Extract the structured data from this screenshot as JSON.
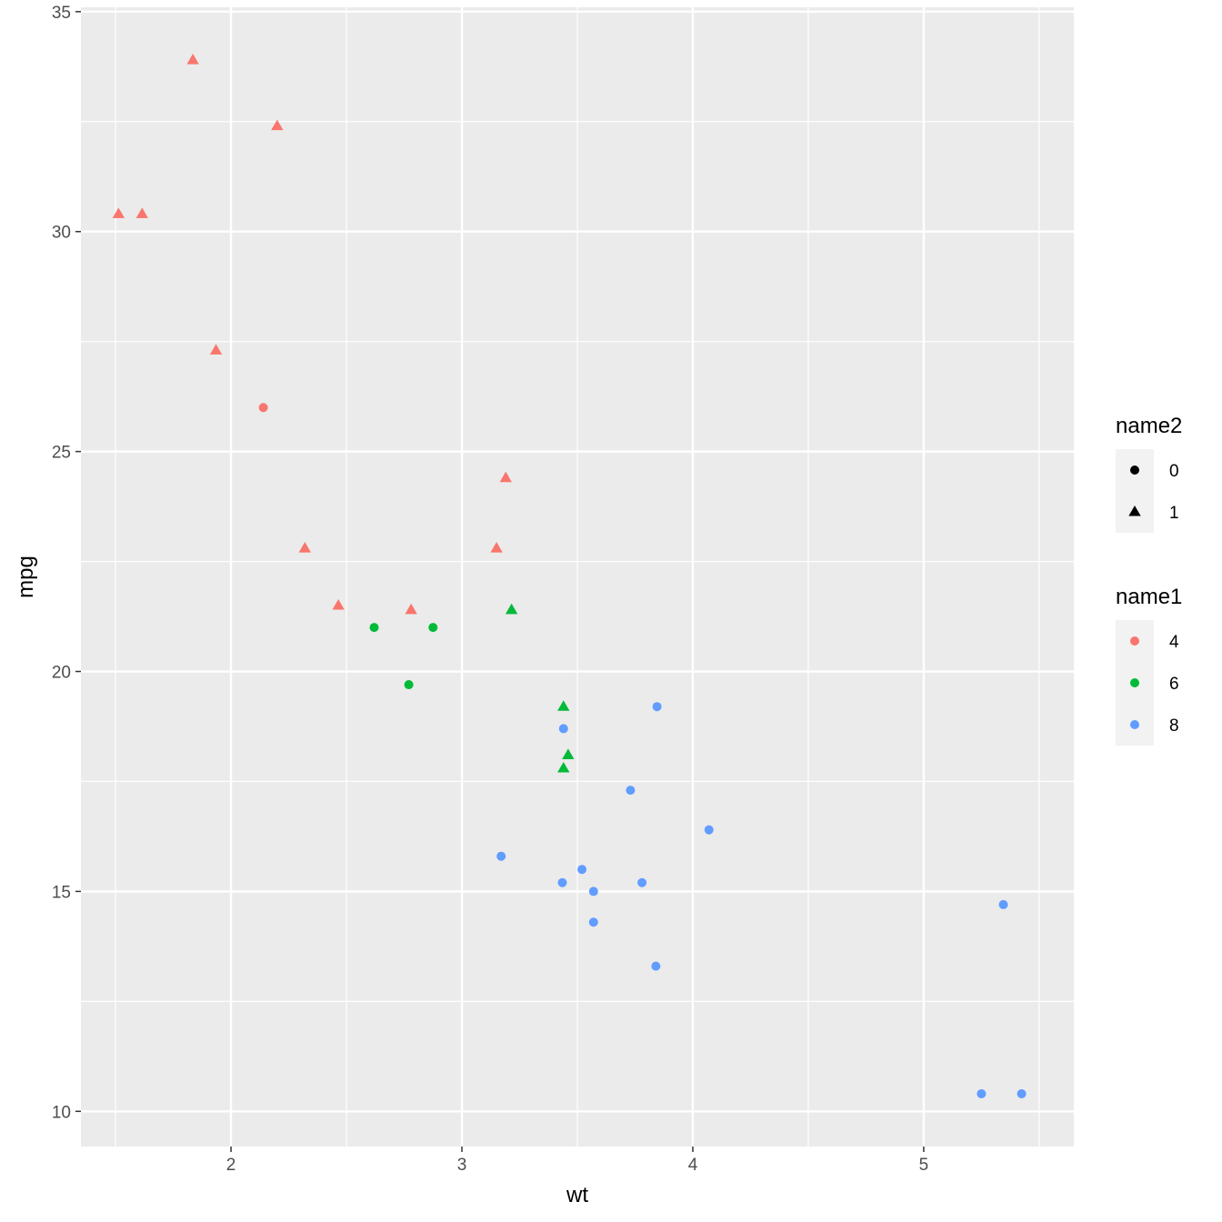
{
  "chart_data": {
    "type": "scatter",
    "title": "",
    "xlabel": "wt",
    "ylabel": "mpg",
    "xlim": [
      1.35,
      5.65
    ],
    "ylim": [
      9.2,
      35.1
    ],
    "x_ticks": [
      2,
      3,
      4,
      5
    ],
    "x_tick_labels": [
      "2",
      "3",
      "4",
      "5"
    ],
    "y_ticks": [
      10,
      15,
      20,
      25,
      30,
      35
    ],
    "y_tick_labels": [
      "10",
      "15",
      "20",
      "25",
      "30",
      "35"
    ],
    "grid": true,
    "legend_position": "right",
    "legends": [
      {
        "title": "name2",
        "aesthetic": "shape",
        "entries": [
          {
            "label": "0",
            "shape": "circle"
          },
          {
            "label": "1",
            "shape": "triangle"
          }
        ]
      },
      {
        "title": "name1",
        "aesthetic": "color",
        "entries": [
          {
            "label": "4",
            "color": "#F8766D"
          },
          {
            "label": "6",
            "color": "#00BA38"
          },
          {
            "label": "8",
            "color": "#619CFF"
          }
        ]
      }
    ],
    "points": [
      {
        "x": 1.835,
        "y": 33.9,
        "name1": "4",
        "name2": "1"
      },
      {
        "x": 2.2,
        "y": 32.4,
        "name1": "4",
        "name2": "1"
      },
      {
        "x": 1.513,
        "y": 30.4,
        "name1": "4",
        "name2": "1"
      },
      {
        "x": 1.615,
        "y": 30.4,
        "name1": "4",
        "name2": "1"
      },
      {
        "x": 1.935,
        "y": 27.3,
        "name1": "4",
        "name2": "1"
      },
      {
        "x": 2.14,
        "y": 26.0,
        "name1": "4",
        "name2": "0"
      },
      {
        "x": 3.19,
        "y": 24.4,
        "name1": "4",
        "name2": "1"
      },
      {
        "x": 2.32,
        "y": 22.8,
        "name1": "4",
        "name2": "1"
      },
      {
        "x": 3.15,
        "y": 22.8,
        "name1": "4",
        "name2": "1"
      },
      {
        "x": 2.465,
        "y": 21.5,
        "name1": "4",
        "name2": "1"
      },
      {
        "x": 2.78,
        "y": 21.4,
        "name1": "4",
        "name2": "1"
      },
      {
        "x": 3.215,
        "y": 21.4,
        "name1": "6",
        "name2": "1"
      },
      {
        "x": 2.62,
        "y": 21.0,
        "name1": "6",
        "name2": "0"
      },
      {
        "x": 2.875,
        "y": 21.0,
        "name1": "6",
        "name2": "0"
      },
      {
        "x": 2.77,
        "y": 19.7,
        "name1": "6",
        "name2": "0"
      },
      {
        "x": 3.44,
        "y": 19.2,
        "name1": "6",
        "name2": "1"
      },
      {
        "x": 3.46,
        "y": 18.1,
        "name1": "6",
        "name2": "1"
      },
      {
        "x": 3.44,
        "y": 17.8,
        "name1": "6",
        "name2": "1"
      },
      {
        "x": 3.845,
        "y": 19.2,
        "name1": "8",
        "name2": "0"
      },
      {
        "x": 3.44,
        "y": 18.7,
        "name1": "8",
        "name2": "0"
      },
      {
        "x": 3.73,
        "y": 17.3,
        "name1": "8",
        "name2": "0"
      },
      {
        "x": 4.07,
        "y": 16.4,
        "name1": "8",
        "name2": "0"
      },
      {
        "x": 3.17,
        "y": 15.8,
        "name1": "8",
        "name2": "0"
      },
      {
        "x": 3.52,
        "y": 15.5,
        "name1": "8",
        "name2": "0"
      },
      {
        "x": 3.435,
        "y": 15.2,
        "name1": "8",
        "name2": "0"
      },
      {
        "x": 3.78,
        "y": 15.2,
        "name1": "8",
        "name2": "0"
      },
      {
        "x": 3.57,
        "y": 15.0,
        "name1": "8",
        "name2": "0"
      },
      {
        "x": 3.57,
        "y": 14.3,
        "name1": "8",
        "name2": "0"
      },
      {
        "x": 3.84,
        "y": 13.3,
        "name1": "8",
        "name2": "0"
      },
      {
        "x": 5.345,
        "y": 14.7,
        "name1": "8",
        "name2": "0"
      },
      {
        "x": 5.25,
        "y": 10.4,
        "name1": "8",
        "name2": "0"
      },
      {
        "x": 5.424,
        "y": 10.4,
        "name1": "8",
        "name2": "0"
      }
    ]
  }
}
